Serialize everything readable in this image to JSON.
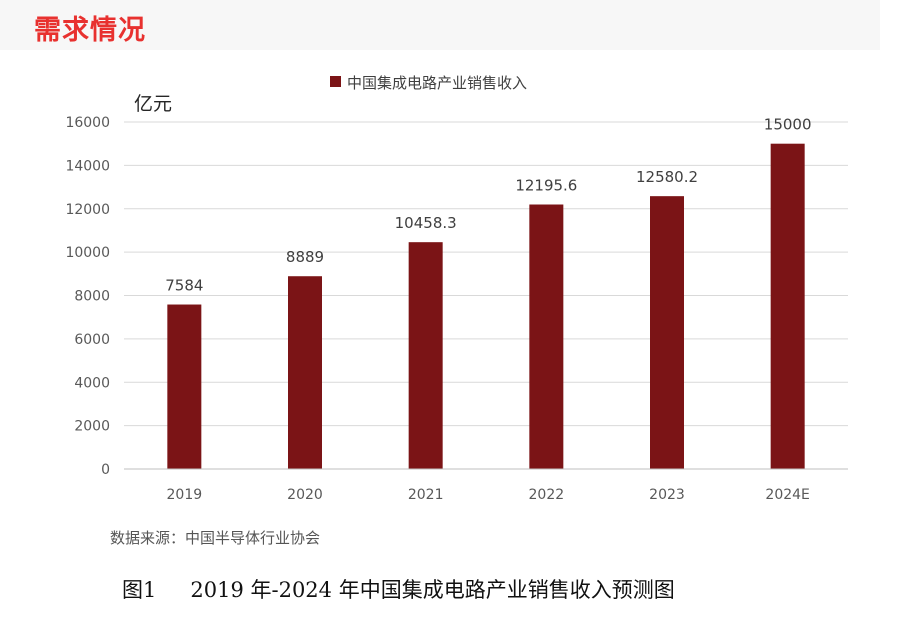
{
  "header": {
    "section_title": "需求情况"
  },
  "chart_data": {
    "type": "bar",
    "categories": [
      "2019",
      "2020",
      "2021",
      "2022",
      "2023",
      "2024E"
    ],
    "series": [
      {
        "name": "中国集成电路产业销售收入",
        "values": [
          7584,
          8889,
          10458.3,
          12195.6,
          12580.2,
          15000
        ]
      }
    ],
    "data_labels": [
      "7584",
      "8889",
      "10458.3",
      "12195.6",
      "12580.2",
      "15000"
    ],
    "unit_label": "亿元",
    "yticks": [
      0,
      2000,
      4000,
      6000,
      8000,
      10000,
      12000,
      14000,
      16000
    ],
    "ylim": [
      0,
      16000
    ],
    "grid": true,
    "legend_position": "top",
    "bar_color": "#7b1416"
  },
  "footer": {
    "source": "数据来源：中国半导体行业协会",
    "figure_label": "图1",
    "caption": "2019 年-2024 年中国集成电路产业销售收入预测图"
  }
}
